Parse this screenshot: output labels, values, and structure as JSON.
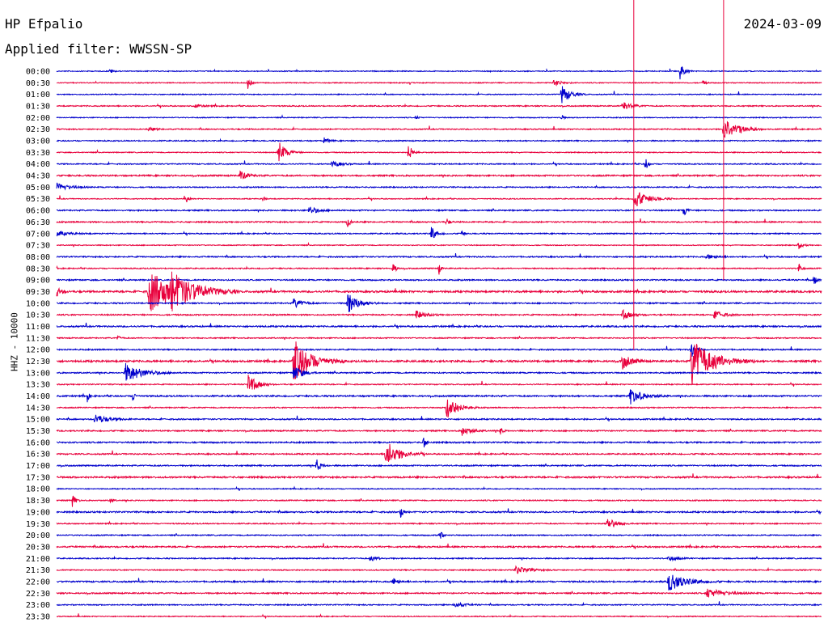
{
  "header": {
    "station": "HP Efpalio",
    "date": "2024-03-09",
    "filter": "Applied filter: WWSSN-SP"
  },
  "chart_data": {
    "type": "line",
    "title": "HP Efpalio",
    "subtitle": "Applied filter: WWSSN-SP",
    "date": "2024-03-09",
    "ylabel": "HHZ - 10000",
    "xlabel": "",
    "colors": {
      "even": "#0000cc",
      "odd": "#e8003c"
    },
    "traces": [
      {
        "label": "00:00",
        "noise": 1.0,
        "events": [
          [
            0.815,
            10,
            10
          ],
          [
            0.07,
            3,
            6
          ]
        ]
      },
      {
        "label": "00:30",
        "noise": 1.0,
        "events": [
          [
            0.25,
            8,
            6
          ],
          [
            0.65,
            4,
            18
          ],
          [
            0.845,
            3,
            6
          ]
        ]
      },
      {
        "label": "01:00",
        "noise": 1.0,
        "events": [
          [
            0.66,
            12,
            20
          ]
        ]
      },
      {
        "label": "01:30",
        "noise": 1.2,
        "events": [
          [
            0.74,
            6,
            20
          ],
          [
            0.18,
            2,
            20
          ]
        ]
      },
      {
        "label": "02:00",
        "noise": 1.0,
        "events": [
          [
            0.47,
            2,
            6
          ],
          [
            0.66,
            3,
            6
          ]
        ]
      },
      {
        "label": "02:30",
        "noise": 1.2,
        "events": [
          [
            0.872,
            16,
            30
          ],
          [
            0.12,
            2,
            20
          ]
        ]
      },
      {
        "label": "03:00",
        "noise": 1.2,
        "events": [
          [
            0.35,
            4,
            10
          ]
        ]
      },
      {
        "label": "03:30",
        "noise": 1.0,
        "events": [
          [
            0.29,
            14,
            18
          ],
          [
            0.46,
            10,
            10
          ]
        ]
      },
      {
        "label": "04:00",
        "noise": 1.2,
        "events": [
          [
            0.36,
            4,
            20
          ],
          [
            0.77,
            8,
            6
          ]
        ]
      },
      {
        "label": "04:30",
        "noise": 1.6,
        "events": [
          [
            0.24,
            5,
            20
          ]
        ]
      },
      {
        "label": "05:00",
        "noise": 1.2,
        "events": [
          [
            0.0,
            5,
            30
          ]
        ]
      },
      {
        "label": "05:30",
        "noise": 1.0,
        "events": [
          [
            0.17,
            6,
            4
          ],
          [
            0.27,
            5,
            4
          ],
          [
            0.755,
            12,
            30
          ]
        ]
      },
      {
        "label": "06:00",
        "noise": 1.4,
        "events": [
          [
            0.33,
            5,
            20
          ],
          [
            0.82,
            8,
            6
          ]
        ]
      },
      {
        "label": "06:30",
        "noise": 1.4,
        "events": [
          [
            0.38,
            7,
            6
          ],
          [
            0.51,
            5,
            6
          ]
        ]
      },
      {
        "label": "07:00",
        "noise": 1.2,
        "events": [
          [
            0.0,
            3,
            30
          ],
          [
            0.49,
            10,
            10
          ],
          [
            0.53,
            6,
            4
          ]
        ]
      },
      {
        "label": "07:30",
        "noise": 1.0,
        "events": [
          [
            0.97,
            4,
            10
          ]
        ]
      },
      {
        "label": "08:00",
        "noise": 1.4,
        "events": [
          [
            0.85,
            3,
            20
          ]
        ]
      },
      {
        "label": "08:30",
        "noise": 1.2,
        "events": [
          [
            0.44,
            8,
            6
          ],
          [
            0.5,
            7,
            4
          ],
          [
            0.97,
            7,
            6
          ]
        ]
      },
      {
        "label": "09:00",
        "noise": 1.4,
        "events": [
          [
            0.99,
            5,
            10
          ]
        ]
      },
      {
        "label": "09:30",
        "noise": 2.0,
        "events": [
          [
            0.12,
            26,
            70
          ],
          [
            0.15,
            16,
            50
          ],
          [
            0.0,
            6,
            10
          ]
        ]
      },
      {
        "label": "10:00",
        "noise": 1.4,
        "events": [
          [
            0.38,
            14,
            25
          ],
          [
            0.31,
            6,
            20
          ]
        ]
      },
      {
        "label": "10:30",
        "noise": 1.4,
        "events": [
          [
            0.47,
            5,
            20
          ],
          [
            0.74,
            6,
            20
          ],
          [
            0.86,
            6,
            20
          ]
        ]
      },
      {
        "label": "11:00",
        "noise": 1.6,
        "events": []
      },
      {
        "label": "11:30",
        "noise": 1.2,
        "events": [
          [
            0.08,
            3,
            6
          ]
        ]
      },
      {
        "label": "12:00",
        "noise": 1.4,
        "events": [
          [
            0.83,
            10,
            10
          ]
        ]
      },
      {
        "label": "12:30",
        "noise": 2.0,
        "events": [
          [
            0.31,
            28,
            40
          ],
          [
            0.74,
            10,
            20
          ],
          [
            0.83,
            30,
            50
          ]
        ]
      },
      {
        "label": "13:00",
        "noise": 1.4,
        "events": [
          [
            0.09,
            12,
            40
          ],
          [
            0.31,
            10,
            20
          ]
        ]
      },
      {
        "label": "13:30",
        "noise": 1.2,
        "events": [
          [
            0.25,
            14,
            20
          ]
        ]
      },
      {
        "label": "14:00",
        "noise": 1.6,
        "events": [
          [
            0.04,
            8,
            4
          ],
          [
            0.1,
            8,
            4
          ],
          [
            0.75,
            10,
            30
          ]
        ]
      },
      {
        "label": "14:30",
        "noise": 1.2,
        "events": [
          [
            0.51,
            16,
            25
          ]
        ]
      },
      {
        "label": "15:00",
        "noise": 1.4,
        "events": [
          [
            0.05,
            6,
            30
          ]
        ]
      },
      {
        "label": "15:30",
        "noise": 1.4,
        "events": [
          [
            0.53,
            6,
            20
          ],
          [
            0.58,
            5,
            6
          ]
        ]
      },
      {
        "label": "16:00",
        "noise": 1.6,
        "events": [
          [
            0.48,
            8,
            6
          ]
        ]
      },
      {
        "label": "16:30",
        "noise": 1.4,
        "events": [
          [
            0.43,
            18,
            30
          ]
        ]
      },
      {
        "label": "17:00",
        "noise": 1.4,
        "events": [
          [
            0.34,
            8,
            10
          ]
        ]
      },
      {
        "label": "17:30",
        "noise": 1.8,
        "events": []
      },
      {
        "label": "18:00",
        "noise": 1.0,
        "events": []
      },
      {
        "label": "18:30",
        "noise": 1.2,
        "events": [
          [
            0.02,
            9,
            8
          ],
          [
            0.07,
            3,
            6
          ]
        ]
      },
      {
        "label": "19:00",
        "noise": 1.6,
        "events": [
          [
            0.45,
            10,
            4
          ]
        ]
      },
      {
        "label": "19:30",
        "noise": 1.2,
        "events": [
          [
            0.72,
            8,
            20
          ]
        ]
      },
      {
        "label": "20:00",
        "noise": 1.2,
        "events": [
          [
            0.5,
            9,
            6
          ]
        ]
      },
      {
        "label": "20:30",
        "noise": 1.6,
        "events": []
      },
      {
        "label": "21:00",
        "noise": 1.2,
        "events": [
          [
            0.41,
            3,
            20
          ],
          [
            0.8,
            3,
            20
          ]
        ]
      },
      {
        "label": "21:30",
        "noise": 1.2,
        "events": [
          [
            0.6,
            5,
            30
          ]
        ]
      },
      {
        "label": "22:00",
        "noise": 1.6,
        "events": [
          [
            0.8,
            12,
            40
          ],
          [
            0.44,
            5,
            10
          ]
        ]
      },
      {
        "label": "22:30",
        "noise": 1.4,
        "events": [
          [
            0.85,
            6,
            40
          ]
        ]
      },
      {
        "label": "23:00",
        "noise": 1.2,
        "events": [
          [
            0.52,
            4,
            20
          ]
        ]
      },
      {
        "label": "23:30",
        "noise": 1.0,
        "events": []
      }
    ],
    "saturated_events": [
      {
        "x": 0.7545,
        "top": "above 00:00",
        "bottom": "12:00"
      },
      {
        "x": 0.872,
        "top": "above 00:00",
        "bottom": "09:00"
      }
    ]
  }
}
